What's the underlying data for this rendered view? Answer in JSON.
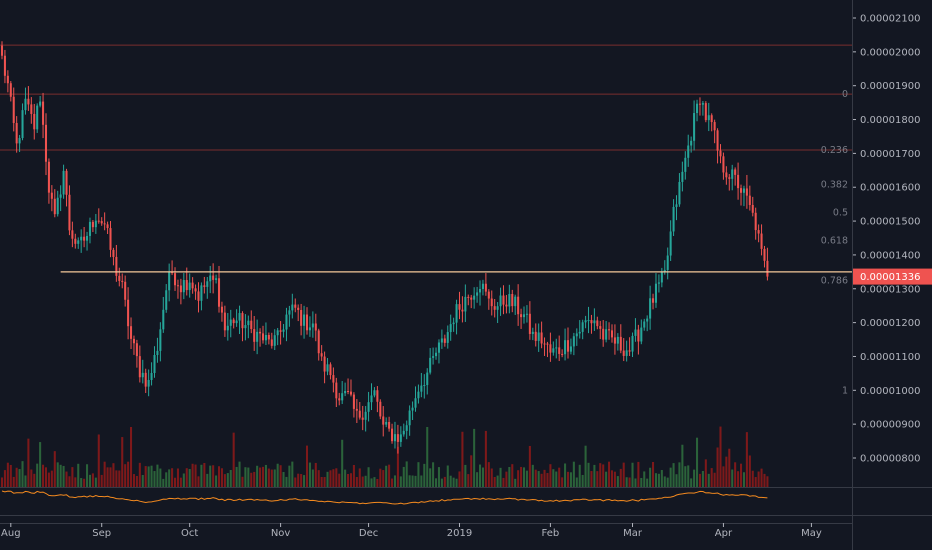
{
  "chart_data": {
    "type": "candlestick",
    "colors": {
      "background": "#131722",
      "up": "#26a69a",
      "down": "#ef5350",
      "volume_up": "#2f6b3d",
      "volume_down": "#8b1a1a",
      "fib_line": "#7a2e2e",
      "support_line": "#f5c89a",
      "oscillator": "#f48a1f",
      "price_tag": "#ef5350",
      "pane_divider": "#e0e3eb"
    },
    "y_axis": {
      "ticks": [
        "0.00002100",
        "0.00002000",
        "0.00001900",
        "0.00001800",
        "0.00001700",
        "0.00001600",
        "0.00001500",
        "0.00001400",
        "0.00001300",
        "0.00001200",
        "0.00001100",
        "0.00001000",
        "0.00000900",
        "0.00000800"
      ],
      "tick_values": [
        2100,
        2000,
        1900,
        1800,
        1700,
        1600,
        1500,
        1400,
        1300,
        1200,
        1100,
        1000,
        900,
        800
      ],
      "unit_note": "",
      "ylim": [
        720,
        2150
      ]
    },
    "x_axis": {
      "labels": [
        "Aug",
        "Sep",
        "Oct",
        "Nov",
        "Dec",
        "2019",
        "Feb",
        "Mar",
        "Apr",
        "May"
      ],
      "label_days": [
        3,
        34,
        64,
        95,
        125,
        156,
        187,
        215,
        246,
        276
      ],
      "xlim": [
        0,
        285
      ]
    },
    "current_price": {
      "label": "0.00001336",
      "value": 1336
    },
    "support_level": 1350,
    "fib_levels": [
      {
        "label": "0",
        "value": 1875
      },
      {
        "label": "0.236",
        "value": 1710
      },
      {
        "label": "0.382",
        "value": 1608
      },
      {
        "label": "0.5",
        "value": 1525
      },
      {
        "label": "0.618",
        "value": 1443
      },
      {
        "label": "0.786",
        "value": 1325
      },
      {
        "label": "1",
        "value": 1000
      }
    ],
    "horizontal_lines": [
      2020,
      1875,
      1710
    ],
    "price_anchors": [
      [
        0,
        1980
      ],
      [
        2,
        1900
      ],
      [
        5,
        1720
      ],
      [
        8,
        1850
      ],
      [
        11,
        1780
      ],
      [
        13,
        1870
      ],
      [
        16,
        1600
      ],
      [
        18,
        1500
      ],
      [
        21,
        1650
      ],
      [
        23,
        1480
      ],
      [
        26,
        1420
      ],
      [
        29,
        1460
      ],
      [
        32,
        1520
      ],
      [
        35,
        1490
      ],
      [
        38,
        1380
      ],
      [
        41,
        1300
      ],
      [
        44,
        1150
      ],
      [
        47,
        1060
      ],
      [
        50,
        1020
      ],
      [
        53,
        1130
      ],
      [
        56,
        1300
      ],
      [
        58,
        1350
      ],
      [
        61,
        1310
      ],
      [
        64,
        1330
      ],
      [
        67,
        1280
      ],
      [
        70,
        1320
      ],
      [
        73,
        1320
      ],
      [
        76,
        1180
      ],
      [
        79,
        1210
      ],
      [
        82,
        1200
      ],
      [
        85,
        1175
      ],
      [
        88,
        1160
      ],
      [
        91,
        1140
      ],
      [
        94,
        1150
      ],
      [
        97,
        1220
      ],
      [
        100,
        1240
      ],
      [
        103,
        1200
      ],
      [
        106,
        1200
      ],
      [
        109,
        1080
      ],
      [
        112,
        1050
      ],
      [
        115,
        980
      ],
      [
        118,
        980
      ],
      [
        121,
        920
      ],
      [
        124,
        950
      ],
      [
        127,
        990
      ],
      [
        130,
        890
      ],
      [
        133,
        870
      ],
      [
        136,
        860
      ],
      [
        139,
        930
      ],
      [
        142,
        1010
      ],
      [
        145,
        1050
      ],
      [
        148,
        1110
      ],
      [
        151,
        1150
      ],
      [
        154,
        1220
      ],
      [
        157,
        1260
      ],
      [
        160,
        1290
      ],
      [
        163,
        1320
      ],
      [
        166,
        1260
      ],
      [
        169,
        1250
      ],
      [
        172,
        1270
      ],
      [
        175,
        1250
      ],
      [
        178,
        1220
      ],
      [
        181,
        1160
      ],
      [
        184,
        1150
      ],
      [
        187,
        1110
      ],
      [
        190,
        1120
      ],
      [
        193,
        1140
      ],
      [
        196,
        1170
      ],
      [
        199,
        1200
      ],
      [
        202,
        1210
      ],
      [
        205,
        1160
      ],
      [
        208,
        1150
      ],
      [
        211,
        1130
      ],
      [
        214,
        1120
      ],
      [
        217,
        1170
      ],
      [
        220,
        1230
      ],
      [
        223,
        1290
      ],
      [
        226,
        1340
      ],
      [
        229,
        1520
      ],
      [
        232,
        1640
      ],
      [
        235,
        1760
      ],
      [
        238,
        1870
      ],
      [
        240,
        1810
      ],
      [
        242,
        1780
      ],
      [
        245,
        1670
      ],
      [
        248,
        1640
      ],
      [
        251,
        1610
      ],
      [
        254,
        1560
      ],
      [
        257,
        1490
      ],
      [
        259,
        1400
      ],
      [
        261,
        1336
      ]
    ],
    "candle_count": 262,
    "oscillator_note": ""
  }
}
